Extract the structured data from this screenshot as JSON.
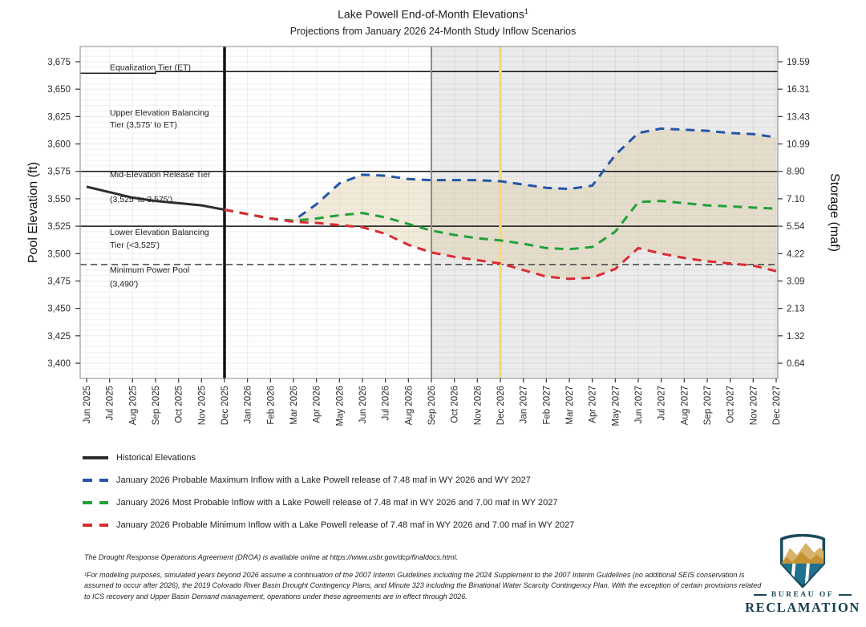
{
  "header": {
    "title": "Lake Powell End-of-Month Elevations",
    "title_superscript": "1",
    "subtitle": "Projections from January 2026 24-Month Study Inflow Scenarios"
  },
  "chart_data": {
    "type": "line",
    "title": "Lake Powell End-of-Month Elevations",
    "subtitle": "Projections from January 2026 24-Month Study Inflow Scenarios",
    "ylabel_left": "Pool Elevation (ft)",
    "ylabel_right": "Storage (maf)",
    "grid": true,
    "x_months": [
      "Jun 2025",
      "Jul 2025",
      "Aug 2025",
      "Sep 2025",
      "Oct 2025",
      "Nov 2025",
      "Dec 2025",
      "Jan 2026",
      "Feb 2026",
      "Mar 2026",
      "Apr 2026",
      "May 2026",
      "Jun 2026",
      "Jul 2026",
      "Aug 2026",
      "Sep 2026",
      "Oct 2026",
      "Nov 2026",
      "Dec 2026",
      "Jan 2027",
      "Feb 2027",
      "Mar 2027",
      "Apr 2027",
      "May 2027",
      "Jun 2027",
      "Jul 2027",
      "Aug 2027",
      "Sep 2027",
      "Oct 2027",
      "Nov 2027",
      "Dec 2027"
    ],
    "elevation_ticks": [
      3400,
      3425,
      3450,
      3475,
      3500,
      3525,
      3550,
      3575,
      3600,
      3625,
      3650,
      3675
    ],
    "elevation_tick_labels": [
      "3,400",
      "3,425",
      "3,450",
      "3,475",
      "3,500",
      "3,525",
      "3,550",
      "3,575",
      "3,600",
      "3,625",
      "3,650",
      "3,675"
    ],
    "storage_tick_labels": [
      "0.64",
      "1.32",
      "2.13",
      "3.09",
      "4.22",
      "5.54",
      "7.10",
      "8.90",
      "10.99",
      "13.43",
      "16.31",
      "19.59"
    ],
    "series": [
      {
        "id": "historical",
        "name": "Historical Elevations",
        "style": "solid",
        "color": "#2d2d2d",
        "start_index": 0,
        "values": [
          3561,
          3556,
          3551,
          3548,
          3546,
          3544,
          3540
        ]
      },
      {
        "id": "probable_maximum",
        "name": "January 2026 Probable Maximum Inflow",
        "style": "dashed",
        "color": "#2356a7",
        "start_index": 6,
        "values": [
          3540,
          3536,
          3532,
          3530,
          3545,
          3564,
          3572,
          3571,
          3568,
          3567,
          3567,
          3567,
          3566,
          3563,
          3560,
          3559,
          3562,
          3590,
          3610,
          3614,
          3613,
          3612,
          3610,
          3609,
          3606
        ]
      },
      {
        "id": "most_probable",
        "name": "January 2026 Most Probable Inflow",
        "style": "dashed",
        "color": "#21a13a",
        "start_index": 6,
        "values": [
          3540,
          3536,
          3532,
          3530,
          3532,
          3535,
          3537,
          3533,
          3527,
          3521,
          3517,
          3514,
          3512,
          3509,
          3505,
          3504,
          3506,
          3520,
          3547,
          3548,
          3546,
          3544,
          3543,
          3542,
          3541
        ]
      },
      {
        "id": "probable_minimum",
        "name": "January 2026 Probable Minimum Inflow",
        "style": "dashed",
        "color": "#da2c34",
        "start_index": 6,
        "values": [
          3540,
          3536,
          3532,
          3529,
          3528,
          3526,
          3524,
          3518,
          3508,
          3501,
          3497,
          3494,
          3491,
          3485,
          3479,
          3477,
          3478,
          3486,
          3505,
          3500,
          3496,
          3493,
          3491,
          3489,
          3484
        ]
      }
    ],
    "reference_lines": [
      {
        "name": "equalization-tier-line",
        "style": "solid",
        "segments": [
          [
            0,
            3664.5
          ],
          [
            3,
            3664.5
          ],
          [
            3,
            3666
          ],
          [
            30,
            3666
          ]
        ]
      },
      {
        "name": "tier-boundary-3575",
        "style": "solid",
        "elev": 3575
      },
      {
        "name": "tier-boundary-3525",
        "style": "solid",
        "elev": 3525
      },
      {
        "name": "minimum-power-pool-line",
        "style": "dashed",
        "elev": 3490
      }
    ],
    "tier_labels": [
      {
        "text": "Equalization Tier (ET)",
        "elev": 3667.5
      },
      {
        "text": "Upper Elevation Balancing",
        "elev": 3626
      },
      {
        "text": "Tier (3,575' to ET)",
        "elev": 3615
      },
      {
        "text": "Mid-Elevation Release Tier",
        "elev": 3569.5
      },
      {
        "text": "(3,525' to 3,575')",
        "elev": 3547
      },
      {
        "text": "Lower Elevation Balancing",
        "elev": 3517
      },
      {
        "text": "Tier (<3,525')",
        "elev": 3505.5
      },
      {
        "text": "Minimum Power Pool",
        "elev": 3482.5
      },
      {
        "text": "(3,490')",
        "elev": 3470
      }
    ],
    "vertical_markers": [
      {
        "name": "historical-projection-divider",
        "month": "Dec 2025",
        "month_index": 6,
        "color": "#111111",
        "width": 3.5
      },
      {
        "name": "shaded-period-boundary",
        "month": "Sep 2026",
        "month_index": 15,
        "color": "#8c8c8c",
        "width": 2
      },
      {
        "name": "december-2026-marker",
        "month": "Dec 2026",
        "month_index": 18,
        "color": "#f8d87a",
        "width": 3.5
      }
    ],
    "shaded_regions": [
      {
        "name": "post-aug-2026-background",
        "from_index": 15,
        "to_index": 30,
        "fill": "#ebebeb",
        "opacity": 1
      },
      {
        "name": "inflow-scenario-range-band",
        "type": "between_series",
        "top": "probable_maximum",
        "bottom": "probable_minimum",
        "from_index": 9,
        "fill": "#d9c89b",
        "opacity": 0.38
      }
    ]
  },
  "legend": {
    "items": [
      {
        "style": "solid",
        "color": "#2d2d2d",
        "label": "Historical Elevations"
      },
      {
        "style": "dashed",
        "color": "#2356a7",
        "label": "January 2026 Probable Maximum Inflow with a Lake Powell release of 7.48 maf in WY 2026 and WY 2027"
      },
      {
        "style": "dashed",
        "color": "#21a13a",
        "label": "January 2026 Most Probable Inflow with a Lake Powell release of 7.48 maf in WY 2026 and 7.00 maf in WY 2027"
      },
      {
        "style": "dashed",
        "color": "#da2c34",
        "label": "January 2026 Probable Minimum Inflow with a Lake Powell release of 7.48 maf in WY 2026 and 7.00 maf in WY 2027"
      }
    ]
  },
  "footnotes": {
    "droa": "The Drought Response Operations Agreement (DROA) is available online at https://www.usbr.gov/dcp/finaldocs.html.",
    "modeling": "¹For modeling purposes, simulated years beyond 2026 assume a continuation of the 2007 Interim Guidelines including the 2024 Supplement to the 2007 Interim Guidelines (no additional SEIS conservation is assumed to occur after 2026), the 2019 Colorado River Basin Drought Contingency Plans, and Minute 323 including the Binational Water Scarcity Contingency Plan. With the exception of certain provisions related to ICS recovery and Upper Basin Demand management, operations under these agreements are in effect through 2026."
  },
  "logo": {
    "org_top": "BUREAU OF",
    "org_bottom": "RECLAMATION",
    "shield_colors": {
      "outline": "#1b4a5a",
      "mountain_back": "#d9b269",
      "mountain_front": "#c49232",
      "water": "#20718f"
    }
  }
}
